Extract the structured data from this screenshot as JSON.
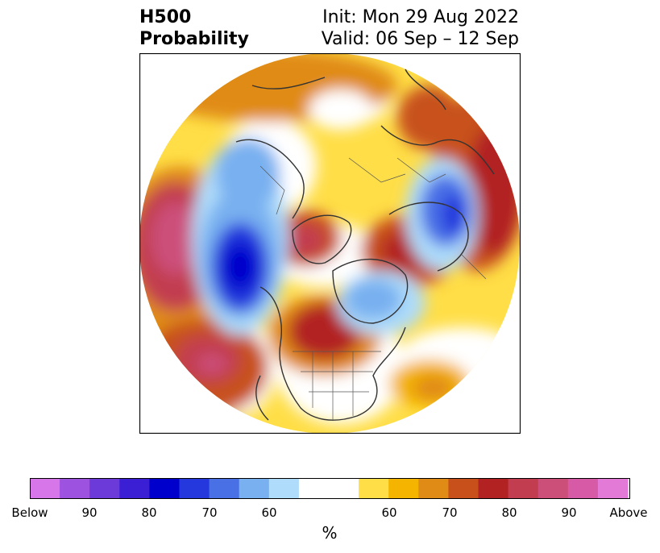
{
  "title": {
    "variable": "H500",
    "product": "Probability",
    "init": "Init: Mon 29 Aug 2022",
    "valid": "Valid: 06 Sep – 12 Sep"
  },
  "colorbar": {
    "below_colors": [
      "#d676e8",
      "#9d52e0",
      "#6b3ad9",
      "#3a1fd4",
      "#0000cc",
      "#2438dd",
      "#4a70e6",
      "#78b0f0",
      "#aedcfa"
    ],
    "neutral_color": "#ffffff",
    "above_colors": [
      "#ffde47",
      "#f4b400",
      "#e08b16",
      "#c8511b",
      "#b22222",
      "#c23d4f",
      "#cc4f7a",
      "#d65aa6",
      "#e47ad8"
    ],
    "tick_labels": [
      "Below",
      "90",
      "80",
      "70",
      "60",
      "60",
      "70",
      "80",
      "90",
      "Above"
    ],
    "unit_label": "%"
  },
  "map": {
    "projection": "north-polar-stereographic",
    "features": [
      "coastlines",
      "country-borders",
      "state-province-borders"
    ]
  }
}
